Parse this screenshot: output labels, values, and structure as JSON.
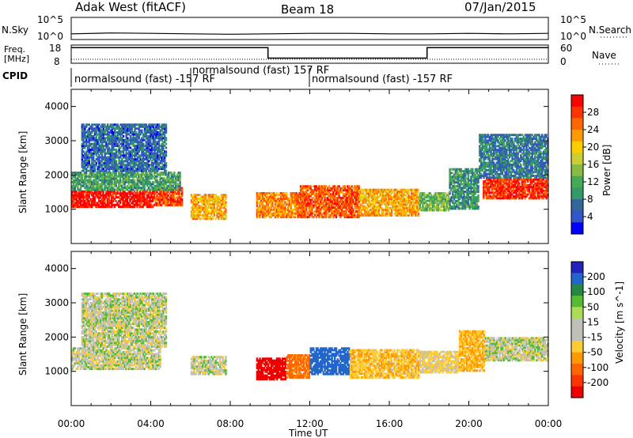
{
  "header": {
    "station": "Adak West (fitACF)",
    "beam": "Beam 18",
    "date": "07/Jan/2015"
  },
  "noise_panel": {
    "left_label": "N.Sky",
    "right_label": "N.Search",
    "left_ticks": [
      "10^5",
      "10^0"
    ],
    "right_ticks": [
      "10^5",
      "10^0"
    ]
  },
  "freq_panel": {
    "left_label_line1": "Freq.",
    "left_label_line2": "[MHz]",
    "right_label": "Nave",
    "left_ticks": [
      "18",
      "8"
    ],
    "right_ticks": [
      "60",
      "0"
    ]
  },
  "cpid_panel": {
    "label": "CPID",
    "segments": [
      {
        "text": "normalsound (fast) -157 RF",
        "start_hour": 0,
        "end_hour": 6
      },
      {
        "text": "normalsound (fast) 157 RF",
        "start_hour": 6,
        "end_hour": 12
      },
      {
        "text": "normalsound (fast) -157 RF",
        "start_hour": 12,
        "end_hour": 24
      }
    ]
  },
  "power_colorbar": {
    "label": "Power [dB]",
    "ticks": [
      "28",
      "24",
      "20",
      "16",
      "12",
      "8",
      "4"
    ],
    "colors": [
      "#ff0000",
      "#ff3300",
      "#ff6600",
      "#ff9900",
      "#ffcc00",
      "#cccc33",
      "#88bb44",
      "#44aa55",
      "#339966",
      "#336699",
      "#3355cc",
      "#0000ff"
    ]
  },
  "velocity_colorbar": {
    "label": "Velocity [m s^-1]",
    "ticks": [
      "200",
      "100",
      "50",
      "15",
      "-15",
      "-50",
      "-100",
      "-200"
    ],
    "colors": [
      "#2222bb",
      "#2266cc",
      "#228844",
      "#55bb33",
      "#aadd55",
      "#c0c0b8",
      "#c0c0b8",
      "#ffcc33",
      "#ff9900",
      "#ff6600",
      "#ff3300",
      "#ee0000"
    ]
  },
  "axes": {
    "ylabel": "Slant Range [km]",
    "xlabel": "Time UT",
    "yticks": [
      "4000",
      "3000",
      "2000",
      "1000"
    ],
    "xticks": [
      "00:00",
      "04:00",
      "08:00",
      "12:00",
      "16:00",
      "20:00",
      "00:00"
    ]
  },
  "chart_data": [
    {
      "type": "line",
      "title": "N.Sky",
      "x": [
        0,
        2,
        4,
        6,
        8,
        10,
        12,
        14,
        16,
        18,
        20,
        22,
        24
      ],
      "series": [
        {
          "name": "N.Sky",
          "values": [
            1.2,
            1.4,
            1.3,
            1.2,
            1.1,
            1.2,
            1.3,
            1.3,
            1.2,
            1.2,
            1.3,
            1.2,
            1.3
          ]
        }
      ],
      "ylim": [
        0,
        5
      ],
      "yscale": "log"
    },
    {
      "type": "line",
      "title": "Freq.",
      "x": [
        0,
        9.9,
        9.9,
        17.9,
        17.9,
        24
      ],
      "series": [
        {
          "name": "Freq. [MHz]",
          "values": [
            16.5,
            16.5,
            10.5,
            10.5,
            16.5,
            16.5
          ]
        }
      ],
      "ylim": [
        8,
        18
      ]
    },
    {
      "type": "heatmap",
      "title": "Power [dB]",
      "xlim": [
        0,
        24
      ],
      "ylim": [
        0,
        4500
      ],
      "xlabel": "Time UT",
      "ylabel": "Slant Range [km]",
      "regions": [
        {
          "t_start": 0.0,
          "t_end": 4.2,
          "r_min": 1050,
          "r_max": 1550,
          "power_db": 28
        },
        {
          "t_start": 4.2,
          "t_end": 5.6,
          "r_min": 1100,
          "r_max": 1650,
          "power_db": 25
        },
        {
          "t_start": 0.0,
          "t_end": 5.5,
          "r_min": 1550,
          "r_max": 2100,
          "power_db": 10
        },
        {
          "t_start": 0.5,
          "t_end": 4.8,
          "r_min": 2100,
          "r_max": 3500,
          "power_db": 6
        },
        {
          "t_start": 6.0,
          "t_end": 7.8,
          "r_min": 700,
          "r_max": 1450,
          "power_db": 20
        },
        {
          "t_start": 9.3,
          "t_end": 11.5,
          "r_min": 750,
          "r_max": 1500,
          "power_db": 22
        },
        {
          "t_start": 11.5,
          "t_end": 14.5,
          "r_min": 750,
          "r_max": 1700,
          "power_db": 24
        },
        {
          "t_start": 14.5,
          "t_end": 17.5,
          "r_min": 800,
          "r_max": 1600,
          "power_db": 20
        },
        {
          "t_start": 17.5,
          "t_end": 19.0,
          "r_min": 950,
          "r_max": 1500,
          "power_db": 12
        },
        {
          "t_start": 19.0,
          "t_end": 20.5,
          "r_min": 1000,
          "r_max": 2200,
          "power_db": 9
        },
        {
          "t_start": 20.7,
          "t_end": 24.0,
          "r_min": 1300,
          "r_max": 1900,
          "power_db": 26
        },
        {
          "t_start": 20.5,
          "t_end": 24.0,
          "r_min": 1900,
          "r_max": 3200,
          "power_db": 7
        }
      ]
    },
    {
      "type": "heatmap",
      "title": "Velocity [m s^-1]",
      "xlim": [
        0,
        24
      ],
      "ylim": [
        0,
        4500
      ],
      "xlabel": "Time UT",
      "ylabel": "Slant Range [km]",
      "regions": [
        {
          "t_start": 0.0,
          "t_end": 4.5,
          "r_min": 1050,
          "r_max": 1700,
          "velocity": 0
        },
        {
          "t_start": 0.5,
          "t_end": 4.8,
          "r_min": 1700,
          "r_max": 3300,
          "velocity": 0
        },
        {
          "t_start": 6.0,
          "t_end": 7.8,
          "r_min": 900,
          "r_max": 1450,
          "velocity": 0
        },
        {
          "t_start": 9.3,
          "t_end": 10.8,
          "r_min": 750,
          "r_max": 1400,
          "velocity": -200
        },
        {
          "t_start": 10.8,
          "t_end": 12.0,
          "r_min": 800,
          "r_max": 1500,
          "velocity": -120
        },
        {
          "t_start": 12.0,
          "t_end": 14.0,
          "r_min": 900,
          "r_max": 1700,
          "velocity": 150
        },
        {
          "t_start": 14.0,
          "t_end": 17.5,
          "r_min": 800,
          "r_max": 1650,
          "velocity": -40
        },
        {
          "t_start": 17.5,
          "t_end": 19.5,
          "r_min": 950,
          "r_max": 1600,
          "velocity": -20
        },
        {
          "t_start": 19.5,
          "t_end": 20.8,
          "r_min": 1000,
          "r_max": 2200,
          "velocity": -50
        },
        {
          "t_start": 20.8,
          "t_end": 24.0,
          "r_min": 1300,
          "r_max": 2000,
          "velocity": 0
        }
      ]
    }
  ]
}
